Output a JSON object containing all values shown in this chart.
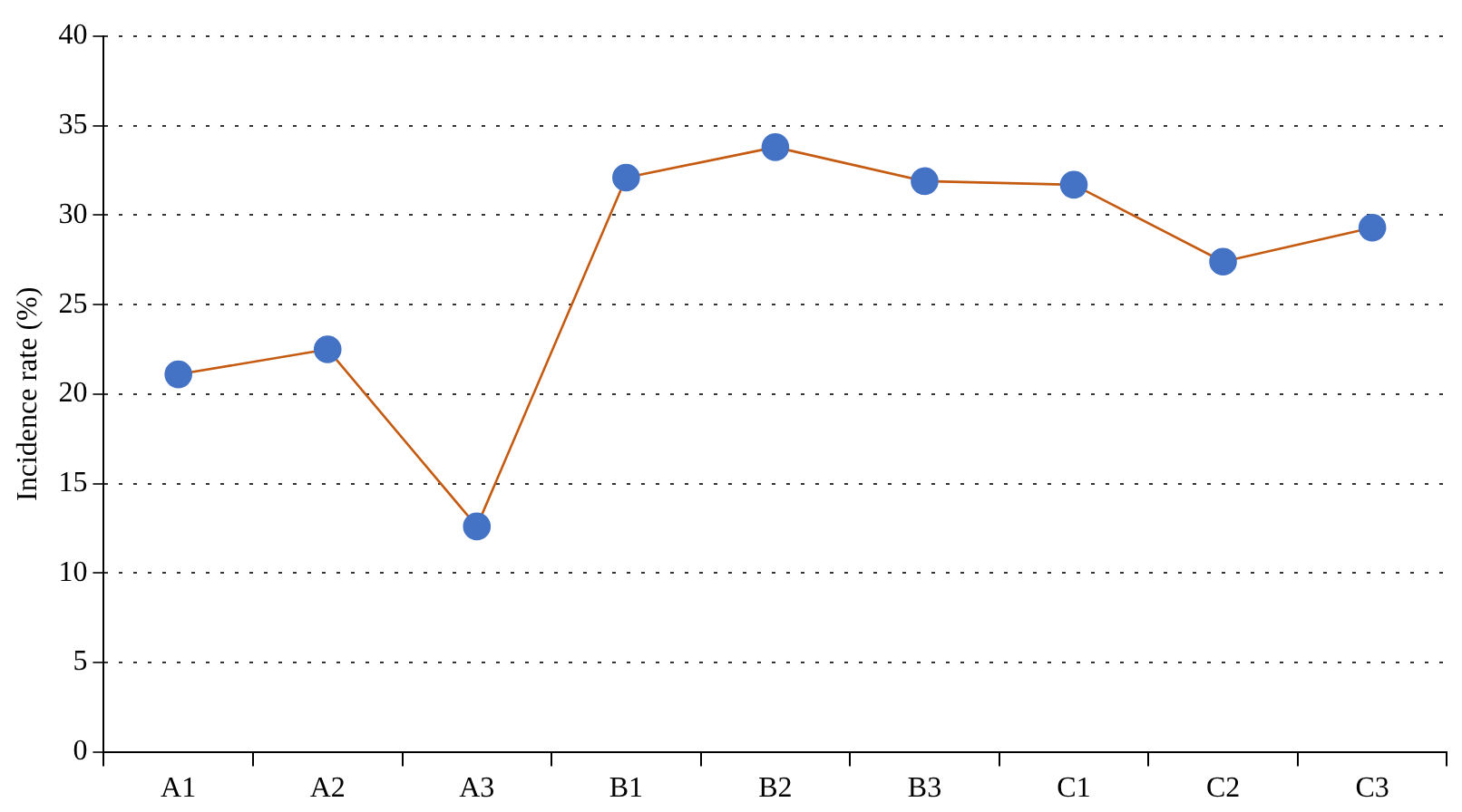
{
  "chart_data": {
    "type": "line",
    "ylabel": "Incidence rate (%)",
    "categories": [
      "A1",
      "A2",
      "A3",
      "B1",
      "B2",
      "B3",
      "C1",
      "C2",
      "C3"
    ],
    "series": [
      {
        "color": "#c55a11",
        "colors": [
          "#4472c4",
          "#4472c4",
          "#4472c4",
          "#4472c4",
          "#4472c4",
          "#4472c4",
          "#4472c4",
          "#4472c4",
          "#4472c4"
        ],
        "values": [
          21.1,
          22.5,
          12.6,
          32.1,
          33.8,
          31.9,
          31.7,
          27.4,
          29.3
        ]
      }
    ],
    "ylim": [
      0,
      40
    ],
    "yticks": [
      0,
      5,
      10,
      15,
      20,
      25,
      30,
      35,
      40
    ],
    "grid": "y",
    "marker": "circle",
    "line_style": "solid",
    "legend": false
  }
}
